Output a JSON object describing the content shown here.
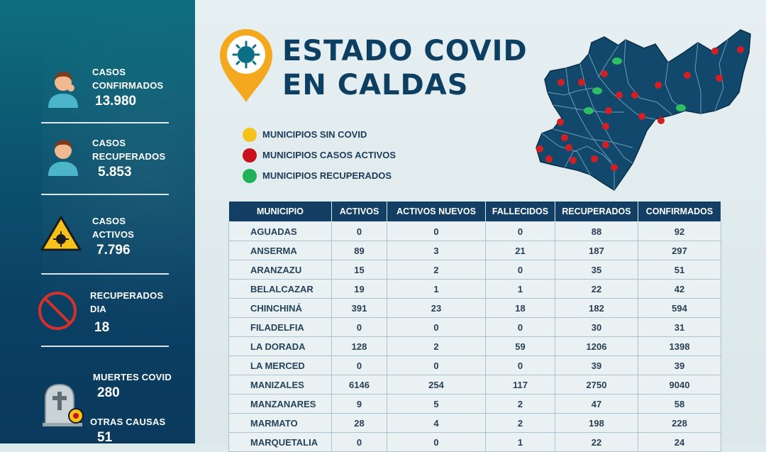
{
  "sidebar": {
    "confirmed": {
      "label1": "CASOS",
      "label2": "CONFIRMADOS",
      "value": "13.980"
    },
    "recovered": {
      "label1": "CASOS",
      "label2": "RECUPERADOS",
      "value": "5.853"
    },
    "active": {
      "label1": "CASOS",
      "label2": "ACTIVOS",
      "value": "7.796"
    },
    "recovered_day": {
      "label1": "RECUPERADOS",
      "label2": "DIA",
      "value": "18"
    },
    "deaths": {
      "label": "MUERTES COVID",
      "value": "280"
    },
    "other": {
      "label": "OTRAS CAUSAS",
      "value": "51"
    }
  },
  "header": {
    "title_line1": "ESTADO COVID",
    "title_line2": "EN CALDAS"
  },
  "legend": [
    {
      "text": "MUNICIPIOS SIN COVID",
      "color": "#f4c21b"
    },
    {
      "text": "MUNICIPIOS CASOS ACTIVOS",
      "color": "#c8101e"
    },
    {
      "text": "MUNICIPIOS RECUPERADOS",
      "color": "#1fb25a"
    }
  ],
  "colors": {
    "navy": "#0d3f63",
    "teal": "#0e6f7e",
    "map": "#12486b",
    "pin": "#f4a81e"
  },
  "table": {
    "headers": [
      "MUNICIPIO",
      "ACTIVOS",
      "ACTIVOS NUEVOS",
      "FALLECIDOS",
      "RECUPERADOS",
      "CONFIRMADOS"
    ],
    "rows": [
      [
        "AGUADAS",
        "0",
        "0",
        "0",
        "88",
        "92"
      ],
      [
        "ANSERMA",
        "89",
        "3",
        "21",
        "187",
        "297"
      ],
      [
        "ARANZAZU",
        "15",
        "2",
        "0",
        "35",
        "51"
      ],
      [
        "BELALCAZAR",
        "19",
        "1",
        "1",
        "22",
        "42"
      ],
      [
        "CHINCHINÁ",
        "391",
        "23",
        "18",
        "182",
        "594"
      ],
      [
        "FILADELFIA",
        "0",
        "0",
        "0",
        "30",
        "31"
      ],
      [
        "LA DORADA",
        "128",
        "2",
        "59",
        "1206",
        "1398"
      ],
      [
        "LA MERCED",
        "0",
        "0",
        "0",
        "39",
        "39"
      ],
      [
        "MANIZALES",
        "6146",
        "254",
        "117",
        "2750",
        "9040"
      ],
      [
        "MANZANARES",
        "9",
        "5",
        "2",
        "47",
        "58"
      ],
      [
        "MARMATO",
        "28",
        "4",
        "2",
        "198",
        "228"
      ],
      [
        "MARQUETALIA",
        "0",
        "0",
        "1",
        "22",
        "24"
      ]
    ]
  }
}
